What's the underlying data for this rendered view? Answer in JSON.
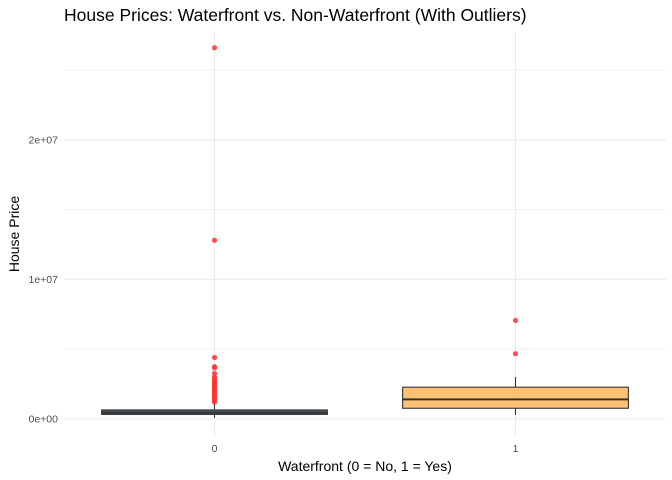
{
  "chart_data": {
    "type": "boxplot",
    "title": "House Prices: Waterfront vs. Non-Waterfront (With Outliers)",
    "xlabel": "Waterfront (0 = No, 1 = Yes)",
    "ylabel": "House Price",
    "categories": [
      "0",
      "1"
    ],
    "y_ticks": [
      {
        "value": 0,
        "label": "0e+00"
      },
      {
        "value": 10000000,
        "label": "1e+07"
      },
      {
        "value": 20000000,
        "label": "2e+07"
      }
    ],
    "ylim": [
      -1300000,
      27800000
    ],
    "grid": true,
    "boxes": [
      {
        "category": "0",
        "fill": "#2f3e4e",
        "min": 78000,
        "q1": 320000,
        "median": 450000,
        "q3": 640000,
        "max": 1120000,
        "outliers": [
          26600000,
          12800000,
          4400000,
          3750000,
          3650000,
          3250000,
          3000000,
          2850000,
          2700000,
          2600000,
          2500000,
          2400000,
          2300000,
          2200000,
          2100000,
          2000000,
          1900000,
          1800000,
          1700000,
          1600000,
          1500000,
          1400000,
          1300000,
          1200000
        ]
      },
      {
        "category": "1",
        "fill": "#ffb65a",
        "min": 285000,
        "q1": 760000,
        "median": 1400000,
        "q3": 2270000,
        "max": 3000000,
        "outliers": [
          7060000,
          4670000
        ]
      }
    ],
    "outlier_color": "#ff3333",
    "box_outline": "#333333",
    "grid_color": "#ebebeb"
  }
}
